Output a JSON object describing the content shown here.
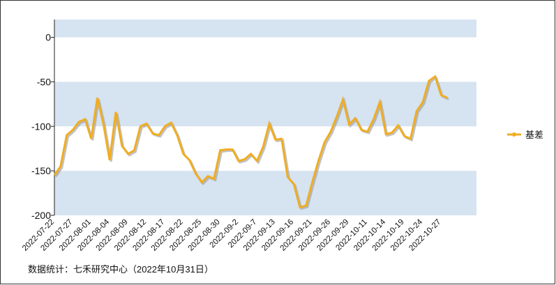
{
  "chart_data": {
    "type": "line",
    "categories": [
      "2022-07-22",
      null,
      null,
      "2022-07-27",
      null,
      null,
      "2022-08-01",
      null,
      null,
      "2022-08-04",
      null,
      null,
      "2022-08-09",
      null,
      null,
      "2022-08-12",
      null,
      null,
      "2022-08-17",
      null,
      null,
      "2022-08-22",
      null,
      null,
      "2022-08-25",
      null,
      null,
      "2022-08-30",
      null,
      null,
      "2022-09-2",
      null,
      null,
      "2022-09-7",
      null,
      null,
      "2022-09-13",
      null,
      null,
      "2022-09-16",
      null,
      null,
      "2022-09-21",
      null,
      null,
      "2022-09-26",
      null,
      null,
      "2022-09-29",
      null,
      null,
      "2022-10-11",
      null,
      null,
      "2022-10-14",
      null,
      null,
      "2022-10-19",
      null,
      null,
      "2022-10-24",
      null,
      null,
      "2022-10-27",
      null
    ],
    "series": [
      {
        "name": "基差",
        "color": "#f0ad22",
        "values": [
          -155,
          -145,
          -110,
          -104,
          -95,
          -92,
          -114,
          -68,
          -98,
          -138,
          -84,
          -122,
          -131,
          -127,
          -100,
          -97,
          -108,
          -110,
          -100,
          -96,
          -110,
          -131,
          -138,
          -153,
          -163,
          -156,
          -159,
          -127,
          -126,
          -126,
          -139,
          -137,
          -131,
          -139,
          -123,
          -97,
          -115,
          -114,
          -157,
          -165,
          -191,
          -189,
          -163,
          -139,
          -118,
          -106,
          -89,
          -70,
          -98,
          -91,
          -104,
          -106,
          -92,
          -73,
          -109,
          -107,
          -99,
          -111,
          -114,
          -83,
          -73,
          -49,
          -44,
          -65,
          -68
        ]
      }
    ],
    "ylim": [
      -200,
      20
    ],
    "yticks": [
      -200,
      -150,
      -100,
      -50,
      0
    ],
    "band_color": "#d6e3f0",
    "legend": "right",
    "footnote": "数据统计：七禾研究中心（2022年10月31日）"
  }
}
